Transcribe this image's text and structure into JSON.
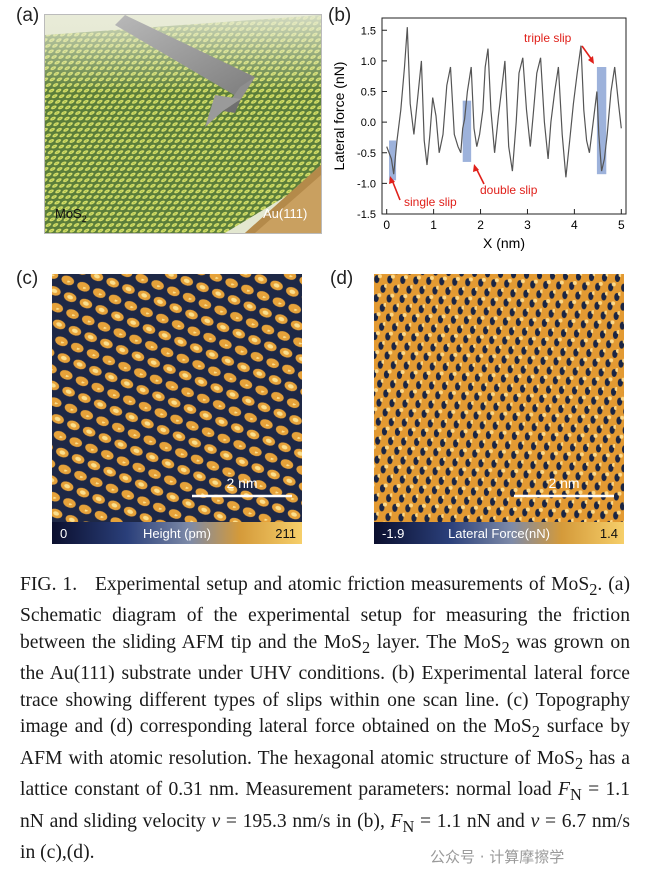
{
  "panel_labels": {
    "a": "(a)",
    "b": "(b)",
    "c": "(c)",
    "d": "(d)"
  },
  "panel_a": {
    "substrate_label": "Au(111)",
    "layer_label_main": "MoS",
    "layer_label_sub": "2"
  },
  "chart_data": {
    "type": "line",
    "panel": "(b)",
    "xlabel": "X (nm)",
    "ylabel": "Lateral force (nN)",
    "xlim": [
      -0.1,
      5.1
    ],
    "ylim": [
      -1.5,
      1.7
    ],
    "xticks": [
      "0",
      "1",
      "2",
      "3",
      "4",
      "5"
    ],
    "yticks": [
      "-1.5",
      "-1.0",
      "-0.5",
      "0.0",
      "0.5",
      "1.0",
      "1.5"
    ],
    "series": [
      {
        "name": "lateral force trace",
        "x": [
          0.0,
          0.1,
          0.15,
          0.22,
          0.3,
          0.38,
          0.44,
          0.5,
          0.58,
          0.66,
          0.74,
          0.8,
          0.86,
          0.92,
          0.98,
          1.05,
          1.12,
          1.2,
          1.28,
          1.36,
          1.44,
          1.52,
          1.58,
          1.62,
          1.66,
          1.72,
          1.8,
          1.86,
          1.92,
          1.98,
          2.05,
          2.1,
          2.16,
          2.22,
          2.3,
          2.38,
          2.46,
          2.52,
          2.6,
          2.68,
          2.76,
          2.82,
          2.9,
          2.98,
          3.06,
          3.12,
          3.2,
          3.28,
          3.36,
          3.44,
          3.5,
          3.58,
          3.66,
          3.74,
          3.82,
          3.9,
          3.98,
          4.06,
          4.14,
          4.2,
          4.26,
          4.32,
          4.4,
          4.48,
          4.52,
          4.58,
          4.64,
          4.7,
          4.78,
          4.86,
          4.94,
          5.0
        ],
        "y": [
          -0.4,
          -0.6,
          -0.85,
          -0.3,
          0.2,
          0.9,
          1.55,
          0.3,
          -0.2,
          0.4,
          1.0,
          -0.3,
          -0.7,
          -0.2,
          0.4,
          0.1,
          -0.5,
          -0.2,
          0.6,
          0.9,
          -0.2,
          -0.4,
          -0.5,
          -0.1,
          0.05,
          0.5,
          0.9,
          -0.1,
          -0.4,
          -0.2,
          0.2,
          0.9,
          1.2,
          0.2,
          -0.5,
          0.1,
          0.6,
          1.0,
          -0.4,
          -0.8,
          0.0,
          0.8,
          1.05,
          0.2,
          -0.4,
          0.1,
          0.8,
          1.05,
          0.0,
          -0.6,
          0.0,
          0.5,
          0.9,
          -0.2,
          -0.9,
          -0.3,
          0.3,
          0.8,
          1.25,
          0.2,
          -0.3,
          -0.5,
          0.0,
          0.5,
          -0.2,
          -0.8,
          -0.6,
          -0.2,
          0.5,
          0.9,
          0.3,
          -0.1
        ]
      }
    ],
    "annotations": [
      "single slip",
      "double slip",
      "triple slip"
    ],
    "highlights": [
      {
        "name": "single slip",
        "x_range": [
          0.05,
          0.2
        ],
        "y_range": [
          -0.95,
          -0.3
        ]
      },
      {
        "name": "double slip",
        "x_range": [
          1.62,
          1.8
        ],
        "y_range": [
          -0.65,
          0.35
        ]
      },
      {
        "name": "triple slip",
        "x_range": [
          4.48,
          4.68
        ],
        "y_range": [
          -0.85,
          0.9
        ]
      }
    ]
  },
  "panel_c": {
    "scale_bar": "2 nm",
    "colorbar_min": "0",
    "colorbar_label": "Height (pm)",
    "colorbar_max": "211"
  },
  "panel_d": {
    "scale_bar": "2 nm",
    "colorbar_min": "-1.9",
    "colorbar_label": "Lateral Force(nN)",
    "colorbar_max": "1.4"
  },
  "caption": {
    "fig": "FIG. 1.",
    "t1": "Experimental setup and atomic friction measurements of MoS",
    "t2": ". (a) Schematic diagram of the experimental setup for measuring the friction between the sliding AFM tip and the MoS",
    "t3": " layer. The MoS",
    "t4": " was grown on the Au(111) substrate under UHV conditions. (b) Experimental lateral force trace showing different types of slips within one scan line. (c) Topography image and (d) corresponding lateral force obtained on the MoS",
    "t5": " surface by AFM with atomic resolution. The hexagonal atomic structure of MoS",
    "t6": " has a lattice constant of 0.31 nm. Measurement parameters: normal load ",
    "t7": " = 1.1 nN and sliding velocity ",
    "t8": " = 195.3 nm/s in (b), ",
    "t9": " = 1.1 nN and ",
    "t10": " = 6.7 nm/s in (c),(d).",
    "sub2": "2",
    "F": "F",
    "N": "N",
    "v": "v"
  },
  "watermark": "公众号 · 计算摩擦学"
}
